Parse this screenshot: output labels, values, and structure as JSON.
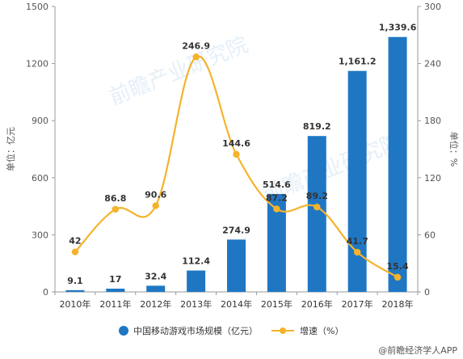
{
  "chart_data": {
    "type": "bar",
    "categories": [
      "2010年",
      "2011年",
      "2012年",
      "2013年",
      "2014年",
      "2015年",
      "2016年",
      "2017年",
      "2018年"
    ],
    "series": [
      {
        "name": "中国移动游戏市场规模（亿元）",
        "chart_type": "bar",
        "axis": "left",
        "values": [
          9.1,
          17,
          32.4,
          112.4,
          274.9,
          514.6,
          819.2,
          1161.2,
          1339.6
        ],
        "labels": [
          "9.1",
          "17",
          "32.4",
          "112.4",
          "274.9",
          "514.6",
          "819.2",
          "1,161.2",
          "1,339.6"
        ]
      },
      {
        "name": "增速（%）",
        "chart_type": "line",
        "axis": "right",
        "values": [
          42,
          86.8,
          90.6,
          246.9,
          144.6,
          87.2,
          89.2,
          41.7,
          15.4
        ],
        "labels": [
          "42",
          "86.8",
          "90.6",
          "246.9",
          "144.6",
          "87.2",
          "89.2",
          "41.7",
          "15.4"
        ]
      }
    ],
    "y_left": {
      "label": "单位：亿元",
      "range": [
        0,
        1500
      ],
      "ticks": [
        "0",
        "300",
        "600",
        "900",
        "1200",
        "1500"
      ],
      "tick_values": [
        0,
        300,
        600,
        900,
        1200,
        1500
      ]
    },
    "y_right": {
      "label": "单位：%",
      "range": [
        0,
        300
      ],
      "ticks": [
        "0",
        "60",
        "120",
        "180",
        "240",
        "300"
      ],
      "tick_values": [
        0,
        60,
        120,
        180,
        240,
        300
      ]
    },
    "grid": false,
    "legend_position": "bottom",
    "colors": {
      "bar": "#1f77c4",
      "line": "#f5b32a"
    }
  },
  "watermark": "前瞻产业研究院",
  "credit": "@前瞻经济学人APP"
}
